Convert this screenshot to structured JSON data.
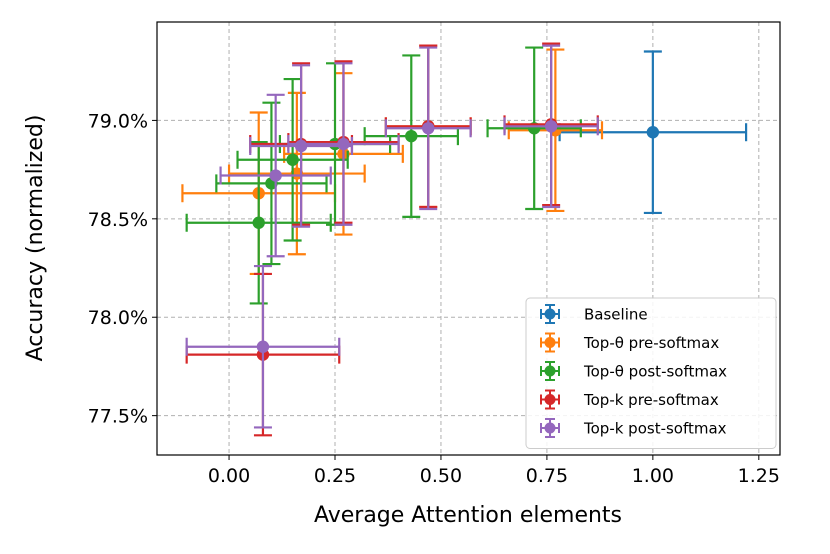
{
  "chart_data": {
    "type": "scatter",
    "title": "",
    "xlabel": "Average Attention elements",
    "ylabel": "Accuracy (normalized)",
    "xlim": [
      -0.17,
      1.3
    ],
    "ylim": [
      77.3,
      79.5
    ],
    "xticks": [
      0.0,
      0.25,
      0.5,
      0.75,
      1.0,
      1.25
    ],
    "xtick_labels": [
      "0.00",
      "0.25",
      "0.50",
      "0.75",
      "1.00",
      "1.25"
    ],
    "yticks": [
      77.5,
      78.0,
      78.5,
      79.0
    ],
    "ytick_labels": [
      "77.5%",
      "78.0%",
      "78.5%",
      "79.0%"
    ],
    "grid": true,
    "legend_position": "lower-right",
    "series": [
      {
        "name": "Baseline",
        "color": "#1f77b4",
        "points": [
          {
            "x": 1.0,
            "y": 78.94,
            "xerr": 0.22,
            "yerr": 0.41
          }
        ]
      },
      {
        "name": "Top-θ pre-softmax",
        "color": "#ff7f0e",
        "points": [
          {
            "x": 0.07,
            "y": 78.63,
            "xerr": 0.18,
            "yerr": 0.41
          },
          {
            "x": 0.16,
            "y": 78.73,
            "xerr": 0.16,
            "yerr": 0.41
          },
          {
            "x": 0.27,
            "y": 78.83,
            "xerr": 0.14,
            "yerr": 0.41
          },
          {
            "x": 0.47,
            "y": 78.97,
            "xerr": 0.1,
            "yerr": 0.41
          },
          {
            "x": 0.77,
            "y": 78.95,
            "xerr": 0.11,
            "yerr": 0.41
          }
        ]
      },
      {
        "name": "Top-θ post-softmax",
        "color": "#2ca02c",
        "points": [
          {
            "x": 0.07,
            "y": 78.48,
            "xerr": 0.17,
            "yerr": 0.41
          },
          {
            "x": 0.1,
            "y": 78.68,
            "xerr": 0.13,
            "yerr": 0.41
          },
          {
            "x": 0.15,
            "y": 78.8,
            "xerr": 0.13,
            "yerr": 0.41
          },
          {
            "x": 0.25,
            "y": 78.88,
            "xerr": 0.13,
            "yerr": 0.41
          },
          {
            "x": 0.43,
            "y": 78.92,
            "xerr": 0.11,
            "yerr": 0.41
          },
          {
            "x": 0.72,
            "y": 78.96,
            "xerr": 0.11,
            "yerr": 0.41
          }
        ]
      },
      {
        "name": "Top-k pre-softmax",
        "color": "#d62728",
        "points": [
          {
            "x": 0.08,
            "y": 77.81,
            "xerr": 0.18,
            "yerr": 0.41
          },
          {
            "x": 0.17,
            "y": 78.88,
            "xerr": 0.12,
            "yerr": 0.41
          },
          {
            "x": 0.27,
            "y": 78.89,
            "xerr": 0.13,
            "yerr": 0.41
          },
          {
            "x": 0.47,
            "y": 78.97,
            "xerr": 0.1,
            "yerr": 0.41
          },
          {
            "x": 0.76,
            "y": 78.98,
            "xerr": 0.11,
            "yerr": 0.41
          }
        ]
      },
      {
        "name": "Top-k post-softmax",
        "color": "#9467bd",
        "points": [
          {
            "x": 0.08,
            "y": 77.85,
            "xerr": 0.18,
            "yerr": 0.41
          },
          {
            "x": 0.11,
            "y": 78.72,
            "xerr": 0.13,
            "yerr": 0.41
          },
          {
            "x": 0.17,
            "y": 78.87,
            "xerr": 0.12,
            "yerr": 0.41
          },
          {
            "x": 0.27,
            "y": 78.88,
            "xerr": 0.13,
            "yerr": 0.41
          },
          {
            "x": 0.47,
            "y": 78.96,
            "xerr": 0.1,
            "yerr": 0.41
          },
          {
            "x": 0.76,
            "y": 78.97,
            "xerr": 0.11,
            "yerr": 0.41
          }
        ]
      }
    ]
  }
}
